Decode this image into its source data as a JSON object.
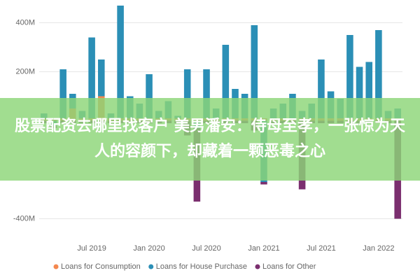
{
  "chart_data": {
    "type": "bar",
    "stacked": true,
    "categories": [
      null,
      null,
      null,
      null,
      null,
      "Jul 2019",
      null,
      null,
      null,
      null,
      null,
      "Jan 2020",
      null,
      null,
      null,
      null,
      null,
      "Jul 2020",
      null,
      null,
      null,
      null,
      null,
      "Jan 2021",
      null,
      null,
      null,
      null,
      null,
      "Jul 2021",
      null,
      null,
      null,
      null,
      null,
      "Jan 2022",
      null,
      null
    ],
    "series": [
      {
        "name": "Loans for Consumption",
        "color": "#f4884f",
        "values": [
          10,
          10,
          10,
          50,
          10,
          10,
          100,
          10,
          10,
          10,
          10,
          10,
          10,
          10,
          10,
          10,
          10,
          10,
          10,
          10,
          10,
          10,
          10,
          10,
          10,
          10,
          10,
          10,
          10,
          10,
          10,
          10,
          10,
          10,
          10,
          10,
          10,
          10
        ]
      },
      {
        "name": "Loans for House Purchase",
        "color": "#2b8fb6",
        "values": [
          20,
          -20,
          200,
          60,
          30,
          330,
          150,
          20,
          460,
          90,
          60,
          180,
          30,
          70,
          10,
          200,
          -30,
          200,
          40,
          300,
          120,
          100,
          380,
          -250,
          40,
          60,
          100,
          30,
          60,
          240,
          110,
          80,
          340,
          210,
          230,
          360,
          30,
          40
        ]
      },
      {
        "name": "Loans for Other",
        "color": "#7b2f6f",
        "values": [
          -10,
          -10,
          -10,
          -10,
          -10,
          -10,
          -10,
          -10,
          -10,
          -10,
          -10,
          -10,
          -10,
          -10,
          -10,
          -60,
          -300,
          -10,
          -10,
          -10,
          -10,
          -10,
          -40,
          -10,
          -10,
          -10,
          -10,
          -280,
          -10,
          -10,
          -10,
          -10,
          -10,
          -10,
          -10,
          -10,
          -10,
          -400
        ]
      }
    ],
    "ylim": [
      -450,
      470
    ],
    "yticks": [
      {
        "value": 400,
        "label": "400M"
      },
      {
        "value": 200,
        "label": "200M"
      },
      {
        "value": -400,
        "label": "-400M"
      }
    ],
    "grid": true
  },
  "overlay_text": "股票配资去哪里找客户 美男潘安：侍母至孝，一张惊为天人的容颜下，却藏着一颗恶毒之心"
}
